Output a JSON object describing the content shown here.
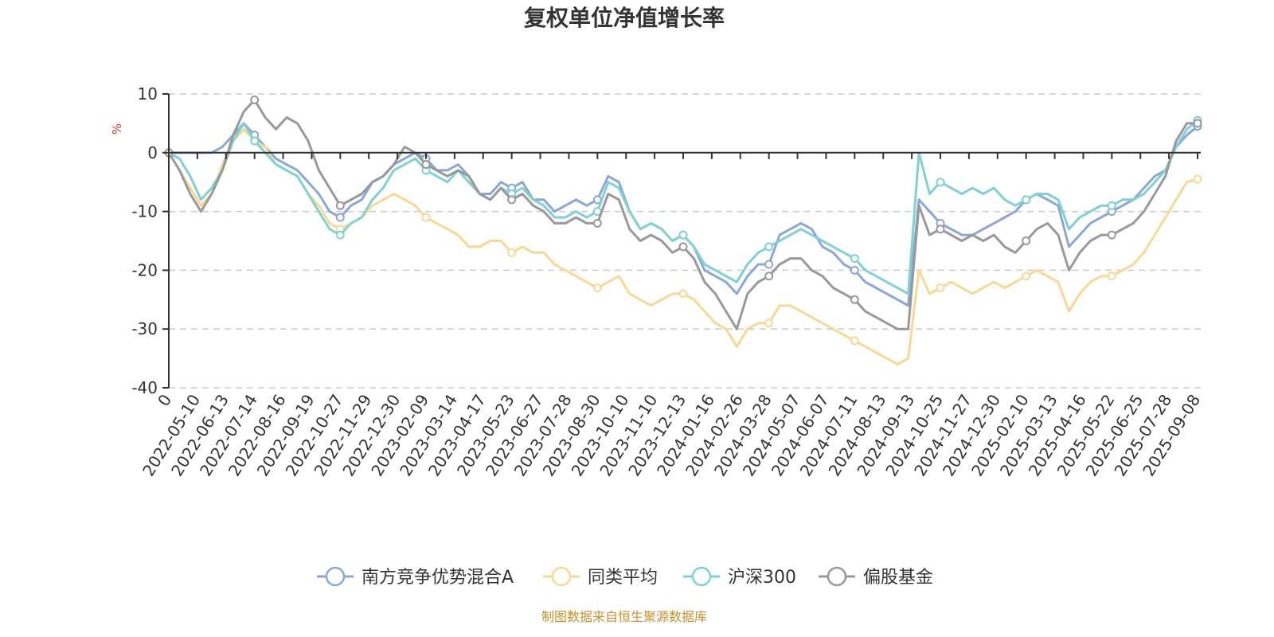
{
  "chart_data": {
    "type": "line",
    "title": "复权单位净值增长率",
    "ylabel": "%",
    "ylim": [
      -40,
      10
    ],
    "yticks": [
      10,
      0,
      -10,
      -20,
      -30,
      -40
    ],
    "xticks": [
      "0",
      "2022-05-10",
      "2022-06-13",
      "2022-07-14",
      "2022-08-16",
      "2022-09-19",
      "2022-10-27",
      "2022-11-29",
      "2022-12-30",
      "2023-02-09",
      "2023-03-14",
      "2023-04-17",
      "2023-05-23",
      "2023-06-27",
      "2023-07-28",
      "2023-08-30",
      "2023-10-10",
      "2023-11-10",
      "2023-12-13",
      "2024-01-16",
      "2024-02-26",
      "2024-03-28",
      "2024-05-07",
      "2024-06-07",
      "2024-07-11",
      "2024-08-13",
      "2024-09-13",
      "2024-10-25",
      "2024-11-27",
      "2024-12-30",
      "2025-02-10",
      "2025-03-13",
      "2025-04-16",
      "2025-05-22",
      "2025-06-25",
      "2025-07-28",
      "2025-09-08"
    ],
    "grid": "horizontal-dashed",
    "legend_position": "bottom-center",
    "series": [
      {
        "name": "南方竞争优势混合A",
        "color": "#8ba7d8",
        "values": [
          0,
          0,
          0,
          0,
          0,
          1,
          3,
          5,
          3,
          1,
          -1,
          -2,
          -3,
          -5,
          -7,
          -10,
          -11,
          -9,
          -8,
          -5,
          -4,
          -2,
          -1,
          0,
          -1,
          -3,
          -3,
          -2,
          -4,
          -7,
          -7,
          -5,
          -6,
          -5,
          -8,
          -8,
          -10,
          -9,
          -8,
          -9,
          -8,
          -4,
          -5,
          -10,
          -13,
          -12,
          -13,
          -15,
          -14,
          -16,
          -20,
          -21,
          -22,
          -24,
          -21,
          -19,
          -19,
          -14,
          -13,
          -12,
          -13,
          -16,
          -17,
          -19,
          -20,
          -22,
          -23,
          -24,
          -25,
          -26,
          -8,
          -10,
          -12,
          -13,
          -14,
          -14,
          -13,
          -12,
          -11,
          -10,
          -8,
          -7,
          -8,
          -9,
          -16,
          -14,
          -12,
          -11,
          -10,
          -9,
          -8,
          -6,
          -4,
          -3,
          1,
          3,
          4.5
        ]
      },
      {
        "name": "同类平均",
        "color": "#fad795",
        "values": [
          0,
          -3,
          -6,
          -9,
          -7,
          -2,
          2,
          4,
          2,
          1,
          -2,
          -3,
          -4,
          -7,
          -9,
          -12,
          -13,
          -12,
          -11,
          -9,
          -8,
          -7,
          -8,
          -9,
          -11,
          -12,
          -13,
          -14,
          -16,
          -16,
          -15,
          -15,
          -17,
          -16,
          -17,
          -17,
          -19,
          -20,
          -21,
          -22,
          -23,
          -22,
          -21,
          -24,
          -25,
          -26,
          -25,
          -24,
          -24,
          -25,
          -27,
          -29,
          -30,
          -33,
          -30,
          -29,
          -29,
          -26,
          -26,
          -27,
          -28,
          -29,
          -30,
          -31,
          -32,
          -33,
          -34,
          -35,
          -36,
          -35,
          -20,
          -24,
          -23,
          -22,
          -23,
          -24,
          -23,
          -22,
          -23,
          -22,
          -21,
          -20,
          -21,
          -22,
          -27,
          -24,
          -22,
          -21,
          -21,
          -20,
          -19,
          -17,
          -14,
          -11,
          -8,
          -5,
          -4.5
        ]
      },
      {
        "name": "沪深300",
        "color": "#7fd1d4",
        "values": [
          0,
          -1,
          -4,
          -8,
          -6,
          -3,
          2,
          5,
          2,
          0,
          -2,
          -3,
          -4,
          -7,
          -10,
          -13,
          -14,
          -12,
          -11,
          -8,
          -6,
          -3,
          -2,
          -1,
          -3,
          -4,
          -5,
          -3,
          -5,
          -7,
          -8,
          -6,
          -7,
          -6,
          -8,
          -9,
          -11,
          -11,
          -10,
          -11,
          -10,
          -5,
          -6,
          -10,
          -13,
          -12,
          -13,
          -15,
          -14,
          -16,
          -19,
          -20,
          -21,
          -22,
          -19,
          -17,
          -16,
          -15,
          -14,
          -13,
          -14,
          -15,
          -16,
          -17,
          -18,
          -20,
          -21,
          -22,
          -23,
          -24,
          0,
          -7,
          -5,
          -6,
          -7,
          -6,
          -7,
          -6,
          -8,
          -9,
          -8,
          -7,
          -7,
          -8,
          -13,
          -11,
          -10,
          -9,
          -9,
          -8,
          -8,
          -7,
          -5,
          -3,
          1,
          4,
          5.5
        ]
      },
      {
        "name": "偏股基金",
        "color": "#999999",
        "values": [
          0,
          -3,
          -7,
          -10,
          -7,
          -3,
          3,
          7,
          9,
          6,
          4,
          6,
          5,
          2,
          -3,
          -6,
          -9,
          -8,
          -7,
          -5,
          -4,
          -2,
          1,
          0,
          -2,
          -3,
          -4,
          -3,
          -4,
          -7,
          -8,
          -6,
          -8,
          -7,
          -9,
          -10,
          -12,
          -12,
          -11,
          -12,
          -12,
          -7,
          -8,
          -13,
          -15,
          -14,
          -15,
          -17,
          -16,
          -18,
          -22,
          -24,
          -27,
          -30,
          -24,
          -22,
          -21,
          -19,
          -18,
          -18,
          -20,
          -21,
          -23,
          -24,
          -25,
          -27,
          -28,
          -29,
          -30,
          -30,
          -9,
          -14,
          -13,
          -14,
          -15,
          -14,
          -15,
          -14,
          -16,
          -17,
          -15,
          -13,
          -12,
          -14,
          -20,
          -17,
          -15,
          -14,
          -14,
          -13,
          -12,
          -10,
          -7,
          -4,
          2,
          5,
          5
        ]
      }
    ]
  },
  "source_note": "制图数据来自恒生聚源数据库"
}
